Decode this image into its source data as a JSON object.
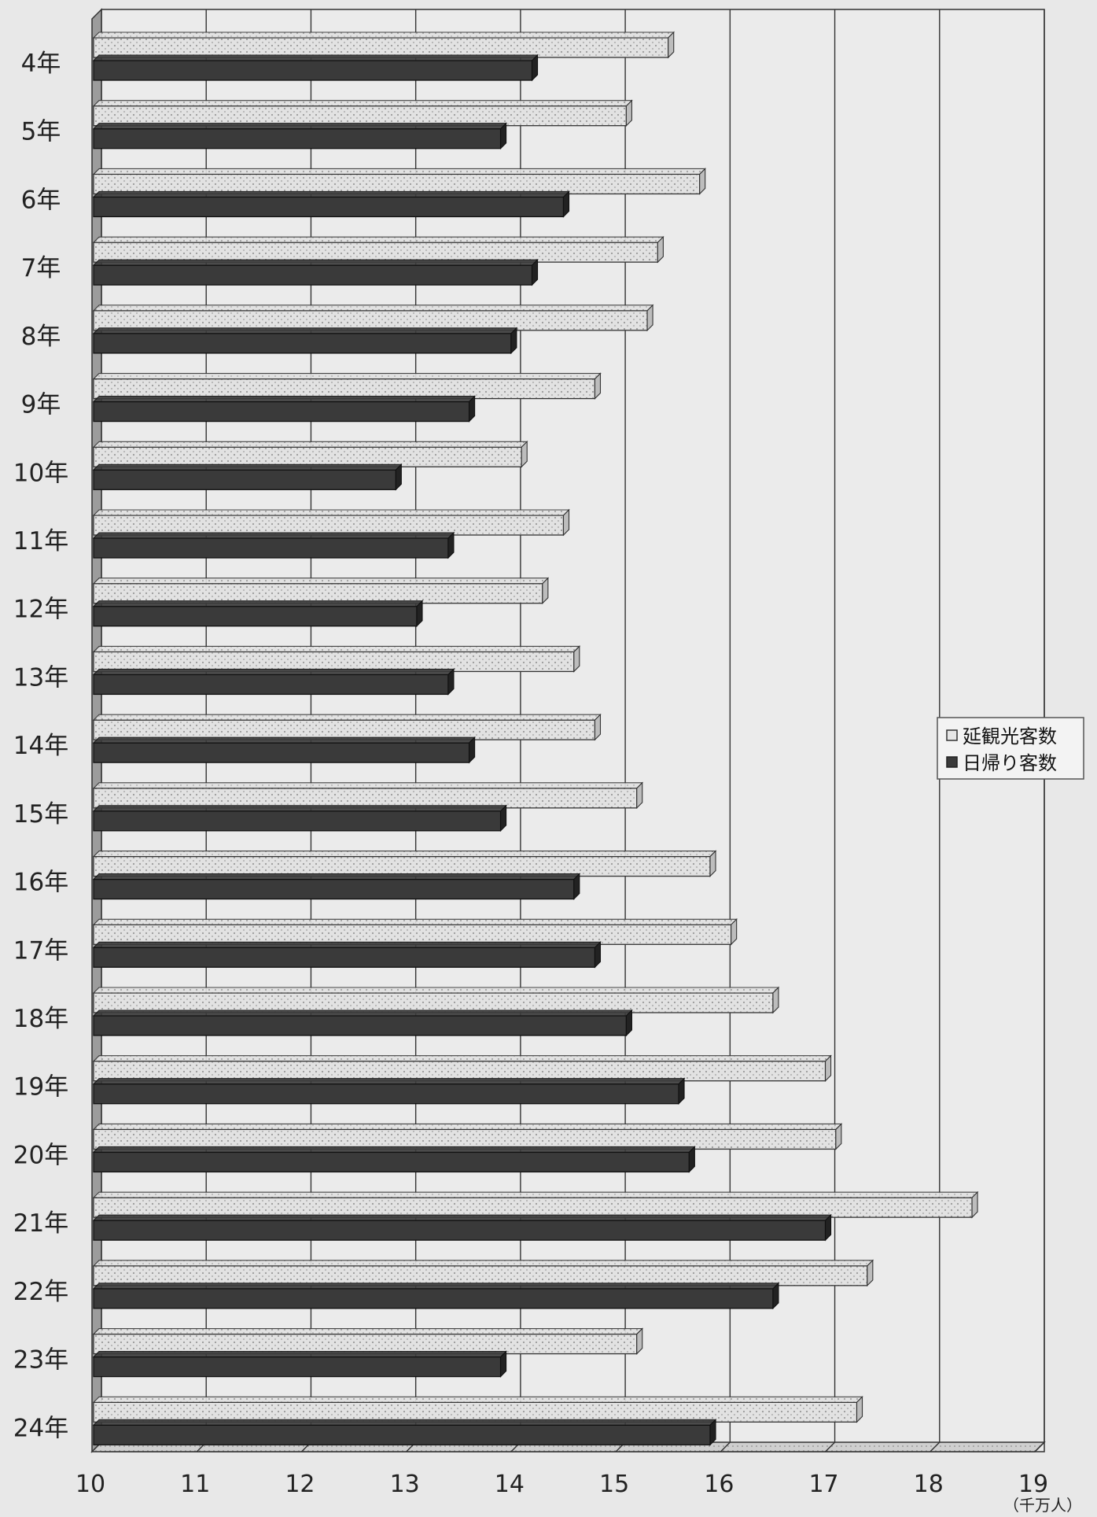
{
  "chart_data": {
    "type": "bar",
    "orientation": "horizontal",
    "categories": [
      "4年",
      "5年",
      "6年",
      "7年",
      "8年",
      "9年",
      "10年",
      "11年",
      "12年",
      "13年",
      "14年",
      "15年",
      "16年",
      "17年",
      "18年",
      "19年",
      "20年",
      "21年",
      "22年",
      "23年",
      "24年"
    ],
    "series": [
      {
        "name": "延観光客数",
        "values": [
          15.5,
          15.1,
          15.8,
          15.4,
          15.3,
          14.8,
          14.1,
          14.5,
          14.3,
          14.6,
          14.8,
          15.2,
          15.9,
          16.1,
          16.5,
          17.0,
          17.1,
          18.4,
          17.4,
          15.2,
          17.3
        ]
      },
      {
        "name": "日帰り客数",
        "values": [
          14.2,
          13.9,
          14.5,
          14.2,
          14.0,
          13.6,
          12.9,
          13.4,
          13.1,
          13.4,
          13.6,
          13.9,
          14.6,
          14.8,
          15.1,
          15.6,
          15.7,
          17.0,
          16.5,
          13.9,
          15.9
        ]
      }
    ],
    "xlim": [
      10,
      19
    ],
    "x_ticks": [
      "10",
      "11",
      "12",
      "13",
      "14",
      "15",
      "16",
      "17",
      "18",
      "19"
    ],
    "unit": "（千万人）",
    "grid": true,
    "legend_position": "right",
    "colors": {
      "series1": "#d8d8d8",
      "series2": "#3a3a3a",
      "grid": "#333333",
      "background": "#e8e8e8"
    }
  }
}
